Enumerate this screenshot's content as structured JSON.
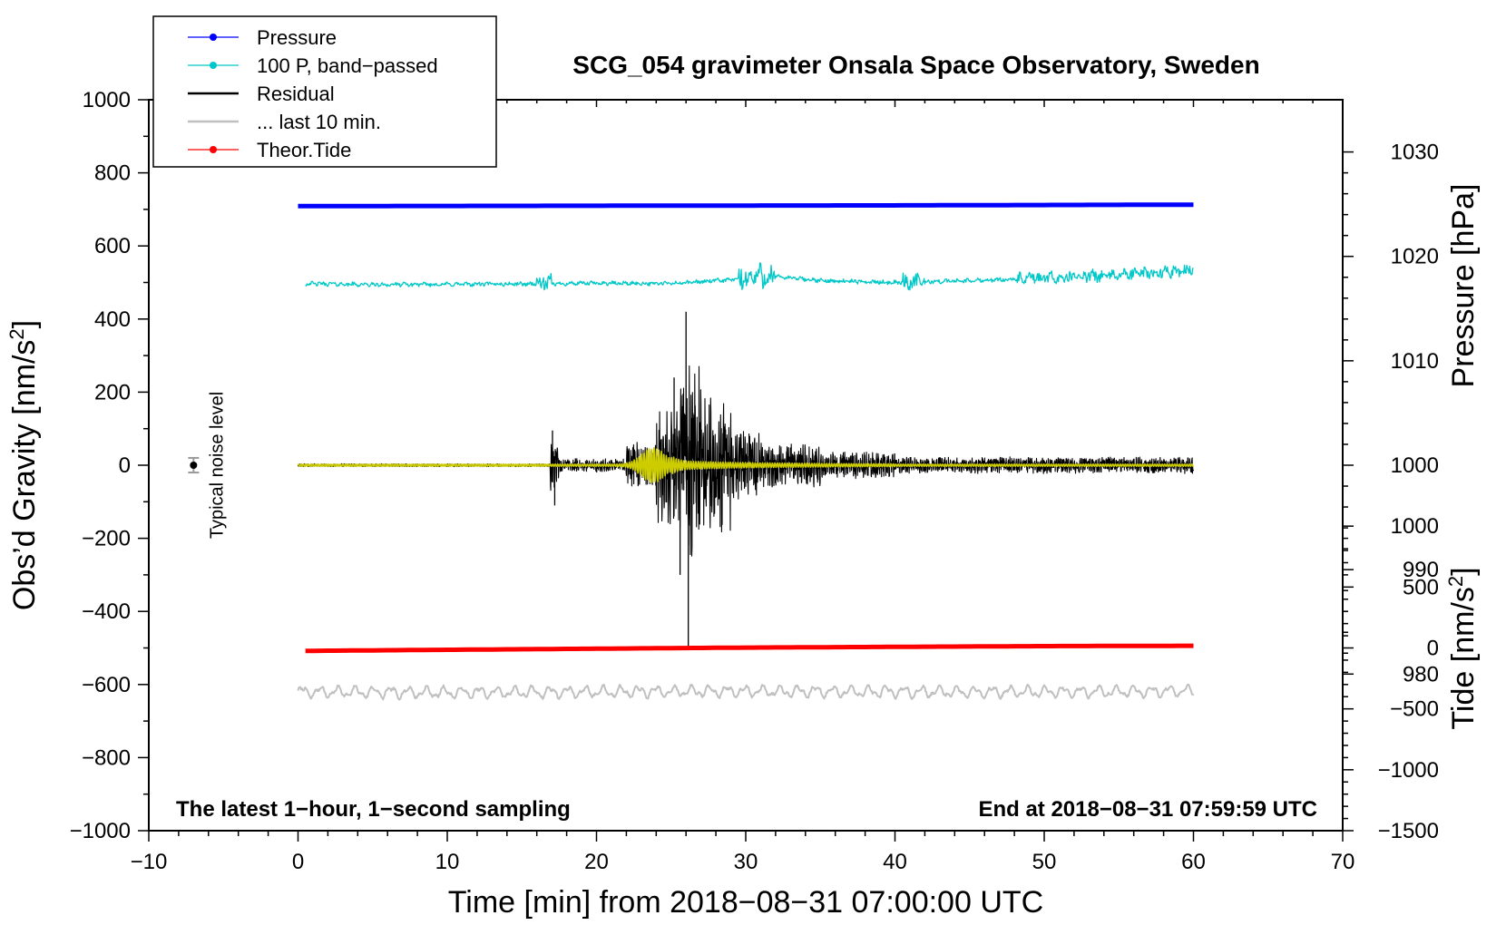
{
  "chart_data": {
    "type": "line",
    "title": "SCG_054 gravimeter Onsala Space Observatory, Sweden",
    "xlabel": "Time [min] from 2018−08−31 07:00:00 UTC",
    "ylabel": "Obs’d Gravity [nm/s",
    "ylabel_sup": "2",
    "ylabel_end": "]",
    "xlim": [
      -10,
      70
    ],
    "ylim": [
      -1000,
      1000
    ],
    "x_ticks": [
      -10,
      0,
      10,
      20,
      30,
      40,
      50,
      60,
      70
    ],
    "x_tick_labels": [
      "−10",
      "0",
      "10",
      "20",
      "30",
      "40",
      "50",
      "60",
      "70"
    ],
    "y_ticks": [
      -1000,
      -800,
      -600,
      -400,
      -200,
      0,
      200,
      400,
      600,
      800,
      1000
    ],
    "y_tick_labels": [
      "−1000",
      "−800",
      "−600",
      "−400",
      "−200",
      "0",
      "200",
      "400",
      "600",
      "800",
      "1000"
    ],
    "right_axes": [
      {
        "name": "pressure",
        "label": "Pressure [hPa]",
        "ticks": [
          980,
          990,
          1000,
          1010,
          1020,
          1030
        ],
        "tick_labels": [
          "980",
          "990",
          "1000",
          "1010",
          "1020",
          "1030"
        ],
        "gravity_at_ref": [
          0,
          1000
        ],
        "ref_values": [
          1000,
          1035
        ]
      },
      {
        "name": "tide",
        "label": "Tide [nm/s",
        "label_sup": "2",
        "label_end": "]",
        "ticks": [
          -1500,
          -1000,
          -500,
          0,
          500,
          1000
        ],
        "tick_labels": [
          "−1500",
          "−1000",
          "−500",
          "0",
          "500",
          "1000"
        ],
        "gravity_at_ref": [
          -1000,
          -500
        ],
        "ref_values": [
          -1500,
          0
        ]
      }
    ],
    "series": [
      {
        "name": "Pressure",
        "color": "#0000ff",
        "style": "line-dot",
        "x": [
          0,
          10,
          20,
          30,
          40,
          50,
          60
        ],
        "values": [
          709,
          709.5,
          710,
          710.5,
          711,
          712,
          713
        ]
      },
      {
        "name": "100 P, band−passed",
        "color": "#00c8c8",
        "style": "line-dot",
        "x": [
          0.5,
          5,
          10,
          15,
          20,
          25,
          30,
          31,
          35,
          40,
          45,
          50,
          55,
          60
        ],
        "values": [
          497,
          494,
          495,
          496,
          498,
          497,
          510,
          520,
          505,
          500,
          505,
          512,
          520,
          535
        ]
      },
      {
        "name": "Residual",
        "color": "#000000",
        "style": "line",
        "x": [
          0,
          17,
          26,
          30,
          60
        ],
        "values": [
          0,
          0,
          0,
          0,
          0
        ]
      },
      {
        "name": "... last 10 min.",
        "color": "#c0c0c0",
        "style": "line",
        "x": [
          0,
          10,
          20,
          30,
          40,
          50,
          60
        ],
        "values": [
          -620,
          -622,
          -620,
          -618,
          -620,
          -620,
          -618
        ]
      },
      {
        "name": "Theor.Tide",
        "color": "#ff0000",
        "style": "line-dot",
        "x": [
          0.5,
          10,
          20,
          30,
          40,
          50,
          60.3
        ],
        "values": [
          -508,
          -505,
          -502,
          -499,
          -497,
          -495,
          -494
        ]
      },
      {
        "name": "band-passed gravity",
        "color": "#cccc00",
        "style": "line",
        "x": [
          0,
          23,
          24,
          60
        ],
        "values": [
          0,
          0,
          0,
          0
        ]
      }
    ],
    "noise_marker": {
      "x": -7,
      "y": 0,
      "err": 20,
      "label": "Typical noise level"
    },
    "annotations": {
      "bottom_left": "The latest 1−hour, 1−second sampling",
      "bottom_right": "End at 2018−08−31 07:59:59 UTC"
    },
    "legend": {
      "position": "top-left",
      "entries": [
        {
          "label": "Pressure",
          "color": "#0000ff",
          "marker": "dot"
        },
        {
          "label": "100 P, band−passed",
          "color": "#00c8c8",
          "marker": "dot"
        },
        {
          "label": "Residual",
          "color": "#000000",
          "marker": "none"
        },
        {
          "label": "... last 10 min.",
          "color": "#c0c0c0",
          "marker": "none"
        },
        {
          "label": "Theor.Tide",
          "color": "#ff0000",
          "marker": "dot"
        }
      ]
    }
  }
}
